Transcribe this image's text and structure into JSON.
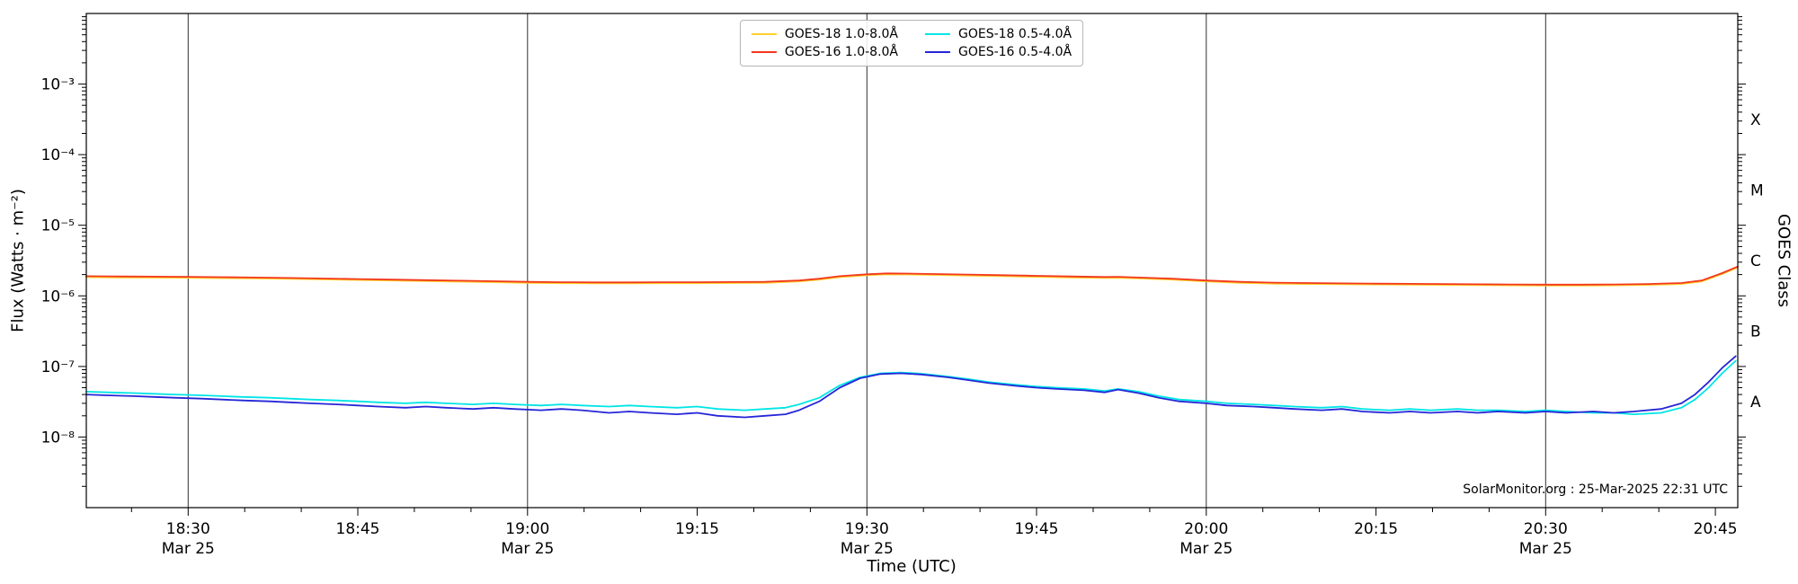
{
  "chart_data": {
    "type": "line",
    "title": "",
    "xlabel": "Time (UTC)",
    "ylabel_left": "Flux (Watts · m⁻²)",
    "annotation": "SolarMonitor.org : 25-Mar-2025 22:31 UTC",
    "grid": "vertical-30min",
    "legend": {
      "position": "top-center",
      "columns": 2
    },
    "x_axis": {
      "start_hour": 18.35,
      "end_hour": 20.783,
      "minor_tick_minutes": 5,
      "gridline_hours": [
        18.5,
        19.0,
        19.5,
        20.0,
        20.5
      ],
      "major_ticks": [
        {
          "hour": 18.5,
          "label": "18:30",
          "date": "Mar 25"
        },
        {
          "hour": 18.75,
          "label": "18:45"
        },
        {
          "hour": 19.0,
          "label": "19:00",
          "date": "Mar 25"
        },
        {
          "hour": 19.25,
          "label": "19:15"
        },
        {
          "hour": 19.5,
          "label": "19:30",
          "date": "Mar 25"
        },
        {
          "hour": 19.75,
          "label": "19:45"
        },
        {
          "hour": 20.0,
          "label": "20:00",
          "date": "Mar 25"
        },
        {
          "hour": 20.25,
          "label": "20:15"
        },
        {
          "hour": 20.5,
          "label": "20:30",
          "date": "Mar 25"
        },
        {
          "hour": 20.75,
          "label": "20:45"
        }
      ]
    },
    "y_axis": {
      "scale": "log",
      "min": 1e-09,
      "max": 0.01,
      "ticks": [
        {
          "value": 0.001,
          "label": "10⁻³"
        },
        {
          "value": 0.0001,
          "label": "10⁻⁴"
        },
        {
          "value": 1e-05,
          "label": "10⁻⁵"
        },
        {
          "value": 1e-06,
          "label": "10⁻⁶"
        },
        {
          "value": 1e-07,
          "label": "10⁻⁷"
        },
        {
          "value": 1e-08,
          "label": "10⁻⁸"
        }
      ]
    },
    "right_axis": {
      "label": "GOES Class",
      "classes": [
        {
          "label": "X",
          "value": 0.000316
        },
        {
          "label": "M",
          "value": 3.16e-05
        },
        {
          "label": "C",
          "value": 3.16e-06
        },
        {
          "label": "B",
          "value": 3.16e-07
        },
        {
          "label": "A",
          "value": 3.16e-08
        }
      ]
    },
    "series": [
      {
        "name": "GOES-18 1.0-8.0Å",
        "color": "#ffd02b",
        "scale": 1e-06,
        "t": [
          18.35,
          18.4,
          18.45,
          18.5,
          18.55,
          18.6,
          18.65,
          18.7,
          18.75,
          18.8,
          18.85,
          18.9,
          18.95,
          19.0,
          19.05,
          19.1,
          19.15,
          19.2,
          19.25,
          19.3,
          19.35,
          19.4,
          19.43,
          19.46,
          19.5,
          19.53,
          19.56,
          19.6,
          19.65,
          19.7,
          19.75,
          19.8,
          19.85,
          19.87,
          19.9,
          19.95,
          20.0,
          20.05,
          20.1,
          20.15,
          20.2,
          20.25,
          20.3,
          20.35,
          20.4,
          20.45,
          20.5,
          20.55,
          20.6,
          20.65,
          20.7,
          20.73,
          20.76,
          20.783
        ],
        "v": [
          1.84,
          1.82,
          1.81,
          1.8,
          1.78,
          1.77,
          1.74,
          1.71,
          1.68,
          1.65,
          1.62,
          1.59,
          1.56,
          1.53,
          1.51,
          1.5,
          1.5,
          1.51,
          1.51,
          1.52,
          1.53,
          1.6,
          1.7,
          1.84,
          1.96,
          2.02,
          2.01,
          1.98,
          1.94,
          1.9,
          1.86,
          1.82,
          1.79,
          1.8,
          1.77,
          1.7,
          1.6,
          1.53,
          1.49,
          1.47,
          1.46,
          1.45,
          1.44,
          1.43,
          1.42,
          1.41,
          1.4,
          1.4,
          1.41,
          1.43,
          1.47,
          1.6,
          2.04,
          2.52
        ]
      },
      {
        "name": "GOES-16 1.0-8.0Å",
        "color": "#f2391f",
        "scale": 1e-06,
        "t": [
          18.35,
          18.4,
          18.45,
          18.5,
          18.55,
          18.6,
          18.65,
          18.7,
          18.75,
          18.8,
          18.85,
          18.9,
          18.95,
          19.0,
          19.05,
          19.1,
          19.15,
          19.2,
          19.25,
          19.3,
          19.35,
          19.4,
          19.43,
          19.46,
          19.5,
          19.53,
          19.56,
          19.6,
          19.65,
          19.7,
          19.75,
          19.8,
          19.85,
          19.87,
          19.9,
          19.95,
          20.0,
          20.05,
          20.1,
          20.15,
          20.2,
          20.25,
          20.3,
          20.35,
          20.4,
          20.45,
          20.5,
          20.55,
          20.6,
          20.65,
          20.7,
          20.73,
          20.76,
          20.783
        ],
        "v": [
          1.9,
          1.88,
          1.87,
          1.86,
          1.84,
          1.82,
          1.79,
          1.76,
          1.73,
          1.7,
          1.67,
          1.64,
          1.61,
          1.58,
          1.56,
          1.55,
          1.55,
          1.56,
          1.56,
          1.57,
          1.58,
          1.65,
          1.75,
          1.9,
          2.02,
          2.08,
          2.07,
          2.04,
          2.0,
          1.96,
          1.92,
          1.88,
          1.85,
          1.86,
          1.82,
          1.75,
          1.65,
          1.58,
          1.54,
          1.52,
          1.5,
          1.49,
          1.48,
          1.47,
          1.46,
          1.45,
          1.44,
          1.44,
          1.45,
          1.47,
          1.52,
          1.65,
          2.1,
          2.6
        ]
      },
      {
        "name": "GOES-18 0.5-4.0Å",
        "color": "#00e5e5",
        "scale": 1e-08,
        "t": [
          18.35,
          18.38,
          18.42,
          18.45,
          18.48,
          18.52,
          18.55,
          18.58,
          18.62,
          18.65,
          18.68,
          18.72,
          18.75,
          18.78,
          18.82,
          18.85,
          18.88,
          18.92,
          18.95,
          18.98,
          19.02,
          19.05,
          19.08,
          19.12,
          19.15,
          19.18,
          19.22,
          19.25,
          19.28,
          19.32,
          19.35,
          19.38,
          19.4,
          19.43,
          19.46,
          19.49,
          19.52,
          19.55,
          19.58,
          19.62,
          19.65,
          19.68,
          19.72,
          19.75,
          19.78,
          19.82,
          19.85,
          19.87,
          19.9,
          19.93,
          19.96,
          20.0,
          20.03,
          20.07,
          20.1,
          20.13,
          20.17,
          20.2,
          20.23,
          20.27,
          20.3,
          20.33,
          20.37,
          20.4,
          20.43,
          20.47,
          20.5,
          20.53,
          20.57,
          20.6,
          20.63,
          20.67,
          20.7,
          20.72,
          20.74,
          20.76,
          20.78
        ],
        "v": [
          4.4,
          4.3,
          4.2,
          4.1,
          4.0,
          3.9,
          3.8,
          3.7,
          3.6,
          3.5,
          3.4,
          3.3,
          3.2,
          3.1,
          3.0,
          3.1,
          3.0,
          2.9,
          3.0,
          2.9,
          2.8,
          2.9,
          2.8,
          2.7,
          2.8,
          2.7,
          2.6,
          2.7,
          2.5,
          2.4,
          2.5,
          2.6,
          2.9,
          3.6,
          5.4,
          7.0,
          8.0,
          8.2,
          7.9,
          7.2,
          6.6,
          6.0,
          5.5,
          5.2,
          5.0,
          4.8,
          4.5,
          4.8,
          4.4,
          3.8,
          3.4,
          3.2,
          3.0,
          2.9,
          2.8,
          2.7,
          2.6,
          2.7,
          2.5,
          2.4,
          2.5,
          2.4,
          2.5,
          2.4,
          2.4,
          2.3,
          2.4,
          2.3,
          2.2,
          2.2,
          2.1,
          2.2,
          2.6,
          3.4,
          5.0,
          8.0,
          12.0
        ]
      },
      {
        "name": "GOES-16 0.5-4.0Å",
        "color": "#2626d8",
        "scale": 1e-08,
        "t": [
          18.35,
          18.38,
          18.42,
          18.45,
          18.48,
          18.52,
          18.55,
          18.58,
          18.62,
          18.65,
          18.68,
          18.72,
          18.75,
          18.78,
          18.82,
          18.85,
          18.88,
          18.92,
          18.95,
          18.98,
          19.02,
          19.05,
          19.08,
          19.12,
          19.15,
          19.18,
          19.22,
          19.25,
          19.28,
          19.32,
          19.35,
          19.38,
          19.4,
          19.43,
          19.46,
          19.49,
          19.52,
          19.55,
          19.58,
          19.62,
          19.65,
          19.68,
          19.72,
          19.75,
          19.78,
          19.82,
          19.85,
          19.87,
          19.9,
          19.93,
          19.96,
          20.0,
          20.03,
          20.07,
          20.1,
          20.13,
          20.17,
          20.2,
          20.23,
          20.27,
          20.3,
          20.33,
          20.37,
          20.4,
          20.43,
          20.47,
          20.5,
          20.53,
          20.57,
          20.6,
          20.63,
          20.67,
          20.7,
          20.72,
          20.74,
          20.76,
          20.78
        ],
        "v": [
          4.0,
          3.9,
          3.8,
          3.7,
          3.6,
          3.5,
          3.4,
          3.3,
          3.2,
          3.1,
          3.0,
          2.9,
          2.8,
          2.7,
          2.6,
          2.7,
          2.6,
          2.5,
          2.6,
          2.5,
          2.4,
          2.5,
          2.4,
          2.2,
          2.3,
          2.2,
          2.1,
          2.2,
          2.0,
          1.9,
          2.0,
          2.1,
          2.4,
          3.2,
          5.0,
          6.8,
          7.8,
          8.0,
          7.7,
          7.0,
          6.4,
          5.8,
          5.3,
          5.0,
          4.8,
          4.6,
          4.3,
          4.7,
          4.2,
          3.6,
          3.2,
          3.0,
          2.8,
          2.7,
          2.6,
          2.5,
          2.4,
          2.5,
          2.3,
          2.2,
          2.3,
          2.2,
          2.3,
          2.2,
          2.3,
          2.2,
          2.3,
          2.2,
          2.3,
          2.2,
          2.3,
          2.5,
          3.0,
          4.0,
          6.0,
          9.5,
          14.0
        ]
      }
    ]
  }
}
